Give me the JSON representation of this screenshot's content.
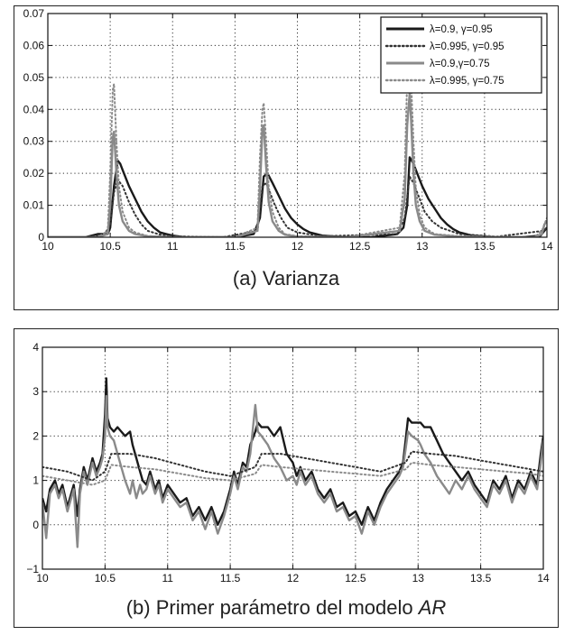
{
  "chart_data": [
    {
      "type": "line",
      "caption_tag": "(a)",
      "caption_text": "Varianza",
      "xlim": [
        10,
        14
      ],
      "ylim": [
        0,
        0.07
      ],
      "xticks": [
        "10",
        "10.5",
        "11",
        "11.5",
        "12",
        "12.5",
        "13",
        "13.5",
        "14"
      ],
      "yticks": [
        "0",
        "0.01",
        "0.02",
        "0.03",
        "0.04",
        "0.05",
        "0.06",
        "0.07"
      ],
      "grid": true,
      "legend_position": "top-right",
      "series": [
        {
          "name": "λ=0.9, γ=0.95",
          "color": "#1a1a1a",
          "style": "solid",
          "x": [
            10.0,
            10.1,
            10.2,
            10.3,
            10.4,
            10.48,
            10.5,
            10.53,
            10.56,
            10.58,
            10.6,
            10.65,
            10.7,
            10.75,
            10.8,
            10.85,
            10.9,
            10.95,
            11.0,
            11.1,
            11.3,
            11.5,
            11.65,
            11.7,
            11.73,
            11.76,
            11.8,
            11.85,
            11.9,
            11.95,
            12.0,
            12.05,
            12.1,
            12.2,
            12.4,
            12.6,
            12.8,
            12.85,
            12.88,
            12.9,
            12.93,
            12.96,
            13.0,
            13.05,
            13.1,
            13.15,
            13.2,
            13.25,
            13.3,
            13.4,
            13.6,
            13.8,
            13.95,
            13.98,
            14.0
          ],
          "y": [
            0,
            0,
            0,
            0,
            0.001,
            0.001,
            0.003,
            0.016,
            0.024,
            0.023,
            0.021,
            0.016,
            0.012,
            0.008,
            0.005,
            0.003,
            0.0015,
            0.001,
            0.0005,
            0,
            0,
            0,
            0.001,
            0.006,
            0.019,
            0.02,
            0.017,
            0.013,
            0.009,
            0.006,
            0.004,
            0.0025,
            0.0015,
            0.0005,
            0,
            0,
            0.001,
            0.003,
            0.01,
            0.025,
            0.023,
            0.02,
            0.016,
            0.012,
            0.009,
            0.006,
            0.004,
            0.0025,
            0.0015,
            0.0005,
            0,
            0,
            0.0005,
            0.002,
            0.003
          ]
        },
        {
          "name": "λ=0.995, γ=0.95",
          "color": "#333333",
          "style": "dotted",
          "x": [
            10.0,
            10.3,
            10.45,
            10.5,
            10.53,
            10.56,
            10.6,
            10.65,
            10.7,
            10.75,
            10.8,
            10.9,
            11.0,
            11.4,
            11.68,
            11.72,
            11.75,
            11.78,
            11.82,
            11.87,
            11.92,
            12.0,
            12.2,
            12.8,
            12.86,
            12.9,
            12.93,
            12.97,
            13.02,
            13.08,
            13.15,
            13.3,
            13.6,
            13.97,
            14.0
          ],
          "y": [
            0,
            0,
            0.0005,
            0.004,
            0.014,
            0.018,
            0.016,
            0.011,
            0.007,
            0.004,
            0.002,
            0.0008,
            0.0003,
            0,
            0.002,
            0.016,
            0.017,
            0.014,
            0.01,
            0.006,
            0.003,
            0.0015,
            0.0003,
            0.001,
            0.006,
            0.019,
            0.017,
            0.013,
            0.008,
            0.005,
            0.003,
            0.001,
            0.0002,
            0.002,
            0.003
          ]
        },
        {
          "name": "λ=0.9,γ=0.75",
          "color": "#8a8a8a",
          "style": "solid",
          "x": [
            10.0,
            10.4,
            10.48,
            10.5,
            10.52,
            10.53,
            10.55,
            10.57,
            10.6,
            10.65,
            10.7,
            10.8,
            11.0,
            11.5,
            11.68,
            11.7,
            11.72,
            11.73,
            11.75,
            11.77,
            11.8,
            11.85,
            11.9,
            12.0,
            12.4,
            12.82,
            12.86,
            12.88,
            12.9,
            12.91,
            12.93,
            12.95,
            12.98,
            13.02,
            13.1,
            13.3,
            13.9,
            13.96,
            13.98,
            14.0
          ],
          "y": [
            0,
            0,
            0.001,
            0.01,
            0.031,
            0.033,
            0.02,
            0.01,
            0.005,
            0.002,
            0.001,
            0.0003,
            0,
            0,
            0.002,
            0.015,
            0.034,
            0.035,
            0.022,
            0.011,
            0.005,
            0.002,
            0.0008,
            0.0002,
            0,
            0.002,
            0.012,
            0.035,
            0.045,
            0.038,
            0.02,
            0.01,
            0.005,
            0.002,
            0.0008,
            0.0002,
            0,
            0.001,
            0.004,
            0.005
          ]
        },
        {
          "name": "λ=0.995, γ=0.75",
          "color": "#8a8a8a",
          "style": "dotted",
          "x": [
            10.0,
            10.4,
            10.48,
            10.5,
            10.52,
            10.53,
            10.55,
            10.57,
            10.6,
            10.65,
            10.7,
            10.8,
            11.0,
            11.5,
            11.68,
            11.7,
            11.72,
            11.73,
            11.75,
            11.77,
            11.8,
            11.85,
            11.9,
            12.0,
            12.4,
            12.82,
            12.86,
            12.88,
            12.9,
            12.91,
            12.93,
            12.95,
            12.98,
            13.02,
            13.1,
            13.3,
            13.9,
            13.96,
            13.98,
            14.0
          ],
          "y": [
            0,
            0,
            0.002,
            0.02,
            0.046,
            0.048,
            0.03,
            0.016,
            0.008,
            0.003,
            0.0015,
            0.0004,
            0,
            0,
            0.003,
            0.025,
            0.04,
            0.042,
            0.03,
            0.016,
            0.008,
            0.003,
            0.001,
            0.0003,
            0,
            0.003,
            0.02,
            0.05,
            0.06,
            0.05,
            0.03,
            0.015,
            0.007,
            0.003,
            0.001,
            0.0003,
            0,
            0.002,
            0.004,
            0.006
          ]
        }
      ]
    },
    {
      "type": "line",
      "caption_tag": "(b)",
      "caption_text": "Primer parámetro del modelo",
      "caption_italic": "AR",
      "xlim": [
        10,
        14
      ],
      "ylim": [
        -1,
        4
      ],
      "xticks": [
        "10",
        "10.5",
        "11",
        "11.5",
        "12",
        "12.5",
        "13",
        "13.5",
        "14"
      ],
      "yticks": [
        "−1",
        "0",
        "1",
        "2",
        "3",
        "4"
      ],
      "grid": true,
      "series": [
        {
          "color": "#1a1a1a",
          "style": "solid",
          "x": [
            10.0,
            10.03,
            10.06,
            10.1,
            10.13,
            10.16,
            10.2,
            10.25,
            10.28,
            10.3,
            10.33,
            10.36,
            10.4,
            10.43,
            10.46,
            10.48,
            10.5,
            10.51,
            10.52,
            10.54,
            10.57,
            10.6,
            10.63,
            10.66,
            10.7,
            10.72,
            10.75,
            10.78,
            10.8,
            10.83,
            10.86,
            10.9,
            10.93,
            10.96,
            11.0,
            11.05,
            11.1,
            11.15,
            11.2,
            11.25,
            11.3,
            11.35,
            11.4,
            11.45,
            11.5,
            11.53,
            11.56,
            11.6,
            11.63,
            11.66,
            11.7,
            11.72,
            11.75,
            11.8,
            11.85,
            11.9,
            11.95,
            12.0,
            12.03,
            12.06,
            12.1,
            12.15,
            12.2,
            12.25,
            12.3,
            12.35,
            12.4,
            12.45,
            12.5,
            12.55,
            12.6,
            12.65,
            12.7,
            12.75,
            12.8,
            12.85,
            12.88,
            12.9,
            12.92,
            12.95,
            13.0,
            13.02,
            13.05,
            13.1,
            13.15,
            13.2,
            13.25,
            13.3,
            13.35,
            13.4,
            13.45,
            13.5,
            13.55,
            13.6,
            13.65,
            13.7,
            13.75,
            13.8,
            13.85,
            13.9,
            13.95,
            13.98,
            14.0
          ],
          "y": [
            0.6,
            0.3,
            0.8,
            1.0,
            0.7,
            0.9,
            0.4,
            0.9,
            0.2,
            0.8,
            1.3,
            1.0,
            1.5,
            1.2,
            1.4,
            1.6,
            2.5,
            3.3,
            2.4,
            2.2,
            2.1,
            2.2,
            2.1,
            2.0,
            2.1,
            1.8,
            1.5,
            1.2,
            1.0,
            0.9,
            1.2,
            0.8,
            1.0,
            0.6,
            0.9,
            0.7,
            0.5,
            0.6,
            0.2,
            0.4,
            0.1,
            0.4,
            0.0,
            0.3,
            0.8,
            1.2,
            0.9,
            1.4,
            1.3,
            1.8,
            2.1,
            2.3,
            2.2,
            2.2,
            2.0,
            2.2,
            1.6,
            1.4,
            1.1,
            1.3,
            1.0,
            1.2,
            0.8,
            0.6,
            0.8,
            0.4,
            0.5,
            0.2,
            0.3,
            0.0,
            0.4,
            0.1,
            0.5,
            0.8,
            1.0,
            1.2,
            1.4,
            1.9,
            2.4,
            2.3,
            2.3,
            2.3,
            2.2,
            2.2,
            1.9,
            1.6,
            1.4,
            1.2,
            1.0,
            1.2,
            0.9,
            0.7,
            0.5,
            1.0,
            0.8,
            1.1,
            0.6,
            1.0,
            0.8,
            1.2,
            0.9,
            1.6,
            2.0
          ]
        },
        {
          "color": "#8a8a8a",
          "style": "solid",
          "x": [
            10.0,
            10.03,
            10.06,
            10.1,
            10.13,
            10.16,
            10.2,
            10.25,
            10.28,
            10.3,
            10.33,
            10.36,
            10.4,
            10.43,
            10.46,
            10.48,
            10.5,
            10.51,
            10.52,
            10.54,
            10.57,
            10.6,
            10.63,
            10.66,
            10.7,
            10.72,
            10.75,
            10.78,
            10.8,
            10.83,
            10.86,
            10.9,
            10.93,
            10.96,
            11.0,
            11.05,
            11.1,
            11.15,
            11.2,
            11.25,
            11.3,
            11.35,
            11.4,
            11.45,
            11.5,
            11.53,
            11.56,
            11.6,
            11.63,
            11.66,
            11.7,
            11.72,
            11.75,
            11.8,
            11.85,
            11.9,
            11.95,
            12.0,
            12.03,
            12.06,
            12.1,
            12.15,
            12.2,
            12.25,
            12.3,
            12.35,
            12.4,
            12.45,
            12.5,
            12.55,
            12.6,
            12.65,
            12.7,
            12.75,
            12.8,
            12.85,
            12.88,
            12.9,
            12.92,
            12.95,
            13.0,
            13.02,
            13.05,
            13.1,
            13.15,
            13.2,
            13.25,
            13.3,
            13.35,
            13.4,
            13.45,
            13.5,
            13.55,
            13.6,
            13.65,
            13.7,
            13.75,
            13.8,
            13.85,
            13.9,
            13.95,
            13.98,
            14.0
          ],
          "y": [
            0.5,
            -0.3,
            0.7,
            0.9,
            0.6,
            0.8,
            0.3,
            0.8,
            -0.5,
            0.7,
            1.2,
            0.9,
            1.4,
            1.1,
            1.3,
            1.5,
            2.0,
            2.9,
            2.2,
            2.0,
            1.9,
            1.6,
            1.3,
            1.0,
            0.7,
            1.0,
            0.6,
            0.9,
            0.7,
            0.8,
            1.1,
            0.7,
            0.9,
            0.5,
            0.8,
            0.6,
            0.4,
            0.5,
            0.1,
            0.3,
            -0.1,
            0.3,
            -0.2,
            0.2,
            0.7,
            1.1,
            0.8,
            1.3,
            1.2,
            1.6,
            2.7,
            2.1,
            2.0,
            1.8,
            1.5,
            1.3,
            1.0,
            1.1,
            0.9,
            1.2,
            0.9,
            1.1,
            0.7,
            0.5,
            0.7,
            0.3,
            0.4,
            0.1,
            0.2,
            -0.2,
            0.3,
            0.0,
            0.4,
            0.7,
            0.9,
            1.1,
            1.3,
            1.7,
            2.1,
            2.0,
            1.9,
            1.8,
            1.6,
            1.4,
            1.1,
            0.9,
            0.7,
            1.0,
            0.8,
            1.1,
            0.8,
            0.6,
            0.4,
            0.9,
            0.7,
            1.0,
            0.5,
            0.9,
            0.7,
            1.1,
            0.8,
            1.4,
            1.9
          ]
        },
        {
          "color": "#333333",
          "style": "dotted",
          "x": [
            10.0,
            10.2,
            10.4,
            10.5,
            10.55,
            10.7,
            10.9,
            11.1,
            11.3,
            11.5,
            11.7,
            11.75,
            11.9,
            12.1,
            12.3,
            12.5,
            12.7,
            12.9,
            12.95,
            13.1,
            13.3,
            13.5,
            13.7,
            13.9,
            14.0
          ],
          "y": [
            1.3,
            1.2,
            1.0,
            1.2,
            1.6,
            1.6,
            1.5,
            1.35,
            1.2,
            1.1,
            1.3,
            1.6,
            1.6,
            1.5,
            1.4,
            1.3,
            1.2,
            1.4,
            1.65,
            1.6,
            1.55,
            1.45,
            1.35,
            1.25,
            1.2
          ]
        },
        {
          "color": "#8a8a8a",
          "style": "dotted",
          "x": [
            10.0,
            10.2,
            10.4,
            10.5,
            10.55,
            10.7,
            10.9,
            11.1,
            11.3,
            11.5,
            11.7,
            11.75,
            11.9,
            12.1,
            12.3,
            12.5,
            12.7,
            12.9,
            12.95,
            13.1,
            13.3,
            13.5,
            13.7,
            13.9,
            14.0
          ],
          "y": [
            1.1,
            1.0,
            0.9,
            1.0,
            1.35,
            1.3,
            1.25,
            1.15,
            1.05,
            1.0,
            1.15,
            1.35,
            1.3,
            1.25,
            1.2,
            1.15,
            1.1,
            1.25,
            1.4,
            1.35,
            1.3,
            1.25,
            1.2,
            1.15,
            1.1
          ]
        }
      ]
    }
  ]
}
